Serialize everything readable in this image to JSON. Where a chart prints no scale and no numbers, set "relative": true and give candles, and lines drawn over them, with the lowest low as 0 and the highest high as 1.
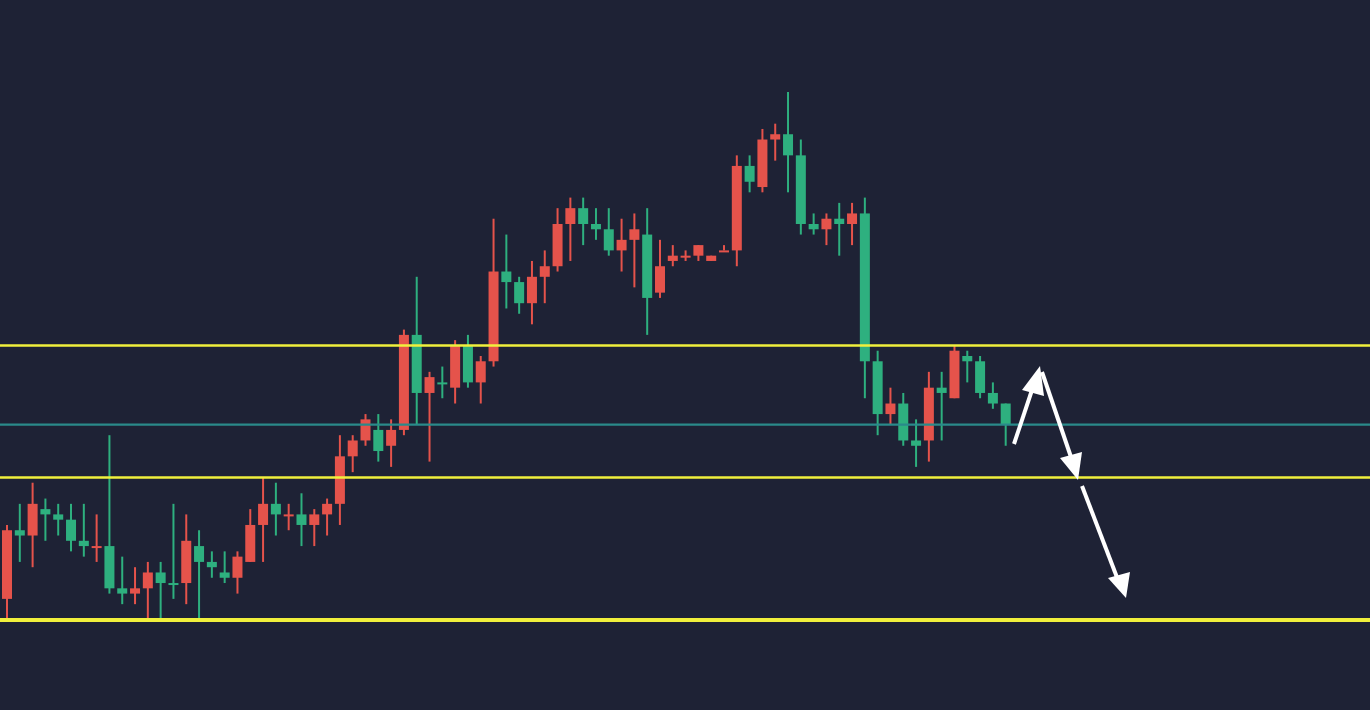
{
  "chart_data": {
    "type": "candlestick",
    "relative": true,
    "grid": false,
    "legend": false,
    "categories": [
      null,
      null,
      null,
      null,
      null,
      null,
      null,
      null,
      null,
      null,
      null,
      null,
      null,
      null,
      null,
      null,
      null,
      null,
      null,
      null,
      null,
      null,
      null,
      null,
      null,
      null,
      null,
      null,
      null,
      null,
      null,
      null,
      null,
      null,
      null,
      null,
      null,
      null,
      null,
      null,
      null,
      null,
      null,
      null,
      null,
      null,
      null,
      null,
      null,
      null,
      null,
      null,
      null,
      null,
      null,
      null,
      null,
      null,
      null,
      null,
      null,
      null,
      null,
      null,
      null,
      null,
      null,
      null,
      null,
      null,
      null,
      null,
      null,
      null,
      null,
      null,
      null,
      null,
      null,
      null,
      null,
      null,
      null,
      null,
      null,
      null,
      null,
      null,
      null,
      null,
      null,
      null,
      null,
      null,
      null,
      null,
      null,
      null,
      null,
      null,
      null,
      null,
      null,
      null,
      null,
      null,
      null
    ],
    "ohlc": [
      [
        0.04,
        0.18,
        0,
        0.17
      ],
      [
        0.17,
        0.22,
        0.11,
        0.16
      ],
      [
        0.16,
        0.26,
        0.1,
        0.22
      ],
      [
        0.21,
        0.23,
        0.15,
        0.2
      ],
      [
        0.2,
        0.22,
        0.16,
        0.19
      ],
      [
        0.19,
        0.22,
        0.13,
        0.15
      ],
      [
        0.15,
        0.22,
        0.12,
        0.14
      ],
      [
        0.14,
        0.2,
        0.11,
        0.14
      ],
      [
        0.14,
        0.35,
        0.05,
        0.06
      ],
      [
        0.06,
        0.12,
        0.03,
        0.05
      ],
      [
        0.05,
        0.1,
        0.03,
        0.06
      ],
      [
        0.06,
        0.11,
        0,
        0.09
      ],
      [
        0.09,
        0.11,
        0,
        0.07
      ],
      [
        0.07,
        0.22,
        0.04,
        0.07
      ],
      [
        0.07,
        0.2,
        0.03,
        0.15
      ],
      [
        0.14,
        0.17,
        0,
        0.11
      ],
      [
        0.11,
        0.13,
        0.08,
        0.1
      ],
      [
        0.09,
        0.13,
        0.07,
        0.08
      ],
      [
        0.08,
        0.13,
        0.05,
        0.12
      ],
      [
        0.11,
        0.21,
        0.11,
        0.18
      ],
      [
        0.18,
        0.27,
        0.11,
        0.22
      ],
      [
        0.22,
        0.26,
        0.16,
        0.2
      ],
      [
        0.2,
        0.22,
        0.17,
        0.2
      ],
      [
        0.2,
        0.24,
        0.14,
        0.18
      ],
      [
        0.18,
        0.21,
        0.14,
        0.2
      ],
      [
        0.2,
        0.23,
        0.16,
        0.22
      ],
      [
        0.22,
        0.35,
        0.18,
        0.31
      ],
      [
        0.31,
        0.35,
        0.28,
        0.34
      ],
      [
        0.34,
        0.39,
        0.33,
        0.38
      ],
      [
        0.36,
        0.39,
        0.3,
        0.32
      ],
      [
        0.33,
        0.38,
        0.29,
        0.36
      ],
      [
        0.36,
        0.55,
        0.35,
        0.54
      ],
      [
        0.54,
        0.65,
        0.37,
        0.43
      ],
      [
        0.43,
        0.47,
        0.3,
        0.46
      ],
      [
        0.45,
        0.48,
        0.42,
        0.45
      ],
      [
        0.44,
        0.53,
        0.41,
        0.52
      ],
      [
        0.52,
        0.54,
        0.44,
        0.45
      ],
      [
        0.45,
        0.5,
        0.41,
        0.49
      ],
      [
        0.49,
        0.76,
        0.48,
        0.66
      ],
      [
        0.66,
        0.73,
        0.59,
        0.64
      ],
      [
        0.64,
        0.65,
        0.58,
        0.6
      ],
      [
        0.6,
        0.68,
        0.56,
        0.65
      ],
      [
        0.65,
        0.7,
        0.6,
        0.67
      ],
      [
        0.67,
        0.78,
        0.66,
        0.75
      ],
      [
        0.75,
        0.8,
        0.68,
        0.78
      ],
      [
        0.78,
        0.8,
        0.71,
        0.75
      ],
      [
        0.75,
        0.78,
        0.72,
        0.74
      ],
      [
        0.74,
        0.78,
        0.69,
        0.7
      ],
      [
        0.7,
        0.76,
        0.66,
        0.72
      ],
      [
        0.72,
        0.77,
        0.63,
        0.74
      ],
      [
        0.73,
        0.78,
        0.54,
        0.61
      ],
      [
        0.62,
        0.72,
        0.61,
        0.67
      ],
      [
        0.68,
        0.71,
        0.67,
        0.69
      ],
      [
        0.69,
        0.7,
        0.68,
        0.69
      ],
      [
        0.69,
        0.71,
        0.68,
        0.71
      ],
      [
        0.68,
        0.69,
        0.68,
        0.69
      ],
      [
        0.7,
        0.71,
        0.7,
        0.7
      ],
      [
        0.7,
        0.88,
        0.67,
        0.86
      ],
      [
        0.86,
        0.88,
        0.81,
        0.83
      ],
      [
        0.82,
        0.93,
        0.81,
        0.91
      ],
      [
        0.91,
        0.94,
        0.87,
        0.92
      ],
      [
        0.92,
        1,
        0.81,
        0.88
      ],
      [
        0.88,
        0.91,
        0.73,
        0.75
      ],
      [
        0.75,
        0.77,
        0.73,
        0.74
      ],
      [
        0.74,
        0.77,
        0.71,
        0.76
      ],
      [
        0.76,
        0.79,
        0.69,
        0.75
      ],
      [
        0.75,
        0.79,
        0.71,
        0.77
      ],
      [
        0.77,
        0.8,
        0.42,
        0.49
      ],
      [
        0.49,
        0.51,
        0.35,
        0.39
      ],
      [
        0.39,
        0.44,
        0.37,
        0.41
      ],
      [
        0.41,
        0.43,
        0.33,
        0.34
      ],
      [
        0.34,
        0.38,
        0.29,
        0.33
      ],
      [
        0.34,
        0.47,
        0.3,
        0.44
      ],
      [
        0.44,
        0.47,
        0.34,
        0.43
      ],
      [
        0.42,
        0.52,
        0.42,
        0.51
      ],
      [
        0.5,
        0.51,
        0.45,
        0.49
      ],
      [
        0.49,
        0.5,
        0.42,
        0.43
      ],
      [
        0.43,
        0.45,
        0.4,
        0.41
      ],
      [
        0.41,
        0.41,
        0.33,
        0.37
      ],
      null,
      null,
      null,
      null,
      null,
      null,
      null,
      null,
      null,
      null,
      null,
      null,
      null,
      null,
      null,
      null,
      null,
      null,
      null,
      null,
      null,
      null,
      null,
      null,
      null,
      null,
      null,
      null
    ],
    "colors": [
      "#e5534b",
      "#2eb07f",
      "#e5534b",
      "#2eb07f",
      "#2eb07f",
      "#2eb07f",
      "#2eb07f",
      "#e5534b",
      "#2eb07f",
      "#2eb07f",
      "#e5534b",
      "#e5534b",
      "#2eb07f",
      "#2eb07f",
      "#e5534b",
      "#2eb07f",
      "#2eb07f",
      "#2eb07f",
      "#e5534b",
      "#e5534b",
      "#e5534b",
      "#2eb07f",
      "#e5534b",
      "#2eb07f",
      "#e5534b",
      "#e5534b",
      "#e5534b",
      "#e5534b",
      "#e5534b",
      "#2eb07f",
      "#e5534b",
      "#e5534b",
      "#2eb07f",
      "#e5534b",
      "#2eb07f",
      "#e5534b",
      "#2eb07f",
      "#e5534b",
      "#e5534b",
      "#2eb07f",
      "#2eb07f",
      "#e5534b",
      "#e5534b",
      "#e5534b",
      "#e5534b",
      "#2eb07f",
      "#2eb07f",
      "#2eb07f",
      "#e5534b",
      "#e5534b",
      "#2eb07f",
      "#e5534b",
      "#e5534b",
      "#e5534b",
      "#e5534b",
      "#e5534b",
      "#e5534b",
      "#e5534b",
      "#2eb07f",
      "#e5534b",
      "#e5534b",
      "#2eb07f",
      "#2eb07f",
      "#2eb07f",
      "#e5534b",
      "#2eb07f",
      "#e5534b",
      "#2eb07f",
      "#2eb07f",
      "#e5534b",
      "#2eb07f",
      "#2eb07f",
      "#e5534b",
      "#2eb07f",
      "#e5534b",
      "#2eb07f",
      "#2eb07f",
      "#2eb07f",
      "#2eb07f",
      null,
      null,
      null,
      null,
      null,
      null,
      null,
      null,
      null,
      null,
      null,
      null,
      null,
      null,
      null,
      null,
      null,
      null,
      null,
      null,
      null,
      null,
      null,
      null,
      null,
      null,
      null,
      null
    ],
    "ref_lines": [
      {
        "axis": "y",
        "value": 0.52,
        "color": "#f0f03c"
      },
      {
        "axis": "y",
        "value": 0.27,
        "color": "#f0f03c"
      },
      {
        "axis": "y",
        "value": 0.37,
        "color": "#2a8a8a"
      },
      {
        "axis": "y",
        "value": 0,
        "color": "#f0f03c"
      }
    ]
  }
}
